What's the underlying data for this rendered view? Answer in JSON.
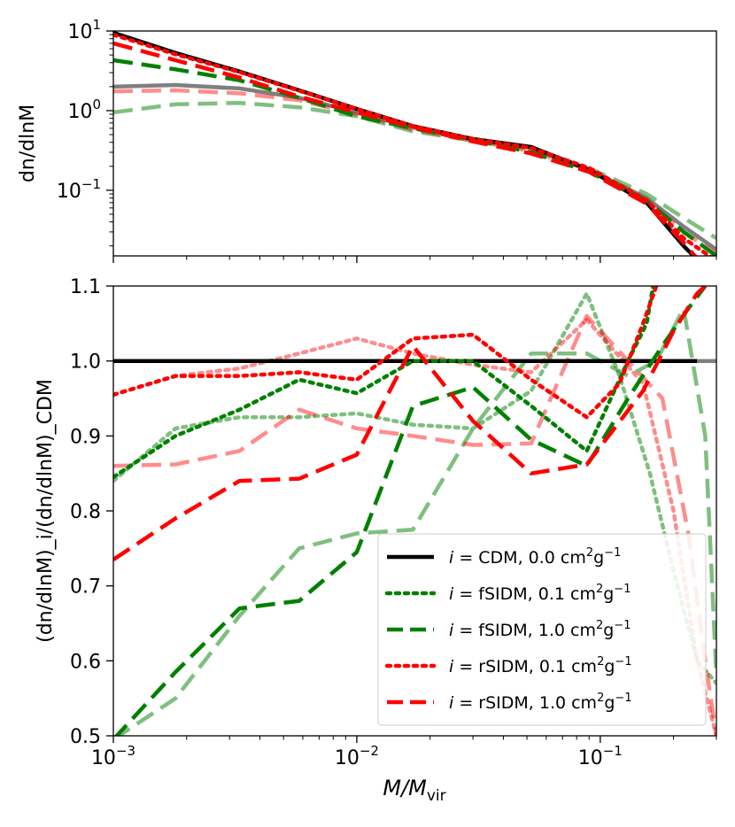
{
  "chart_data": [
    {
      "type": "line",
      "panel": "top",
      "yscale": "log",
      "xscale": "log",
      "xlim": [
        0.001,
        0.3
      ],
      "ylim": [
        0.015,
        10
      ],
      "ylabel": "dn/dlnM",
      "y_ticks": [
        {
          "value": 10,
          "base": "10",
          "exp": "1"
        },
        {
          "value": 1,
          "base": "10",
          "exp": "0"
        },
        {
          "value": 0.1,
          "base": "10",
          "exp": "−1"
        }
      ],
      "series": [
        {
          "name": "CDM light",
          "color": "#7f7f7f",
          "opacity": 1.0,
          "style": "solid",
          "x": [
            0.001,
            0.0018,
            0.0033,
            0.0058,
            0.01,
            0.017,
            0.03,
            0.052,
            0.09,
            0.155,
            0.22,
            0.3
          ],
          "y": [
            2.0,
            2.1,
            1.9,
            1.45,
            0.95,
            0.62,
            0.44,
            0.34,
            0.18,
            0.08,
            0.035,
            0.018
          ]
        },
        {
          "name": "fSIDM 1.0 light",
          "color": "#008000",
          "opacity": 0.5,
          "style": "dashed",
          "x": [
            0.001,
            0.0018,
            0.0033,
            0.0058,
            0.01,
            0.017,
            0.03,
            0.052,
            0.09,
            0.155,
            0.22,
            0.3
          ],
          "y": [
            0.95,
            1.2,
            1.25,
            1.1,
            0.85,
            0.55,
            0.42,
            0.33,
            0.19,
            0.09,
            0.045,
            0.025
          ]
        },
        {
          "name": "rSIDM 1.0 light",
          "color": "#ff0000",
          "opacity": 0.45,
          "style": "dashed",
          "x": [
            0.001,
            0.0018,
            0.0033,
            0.0058,
            0.01,
            0.017,
            0.03,
            0.052,
            0.09,
            0.155,
            0.22,
            0.3
          ],
          "y": [
            1.75,
            1.8,
            1.65,
            1.35,
            0.9,
            0.58,
            0.42,
            0.31,
            0.18,
            0.075,
            0.03,
            0.016
          ]
        },
        {
          "name": "CDM",
          "color": "#000000",
          "opacity": 1.0,
          "style": "solid",
          "x": [
            0.001,
            0.0018,
            0.0033,
            0.0058,
            0.01,
            0.017,
            0.03,
            0.052,
            0.09,
            0.155,
            0.22,
            0.26
          ],
          "y": [
            9.5,
            5.3,
            3.1,
            1.8,
            1.05,
            0.64,
            0.44,
            0.35,
            0.18,
            0.07,
            0.02,
            0.012
          ]
        },
        {
          "name": "fSIDM 1.0",
          "color": "#008000",
          "opacity": 1.0,
          "style": "dashed",
          "x": [
            0.001,
            0.0018,
            0.0033,
            0.0058,
            0.01,
            0.017,
            0.03,
            0.052,
            0.09,
            0.155,
            0.22,
            0.3
          ],
          "y": [
            4.3,
            3.3,
            2.4,
            1.45,
            0.85,
            0.6,
            0.43,
            0.3,
            0.17,
            0.075,
            0.03,
            0.015
          ]
        },
        {
          "name": "rSIDM 0.1",
          "color": "#ff0000",
          "opacity": 1.0,
          "style": "dotted",
          "x": [
            0.001,
            0.0018,
            0.0033,
            0.0058,
            0.01,
            0.017,
            0.03,
            0.052,
            0.09,
            0.155,
            0.22,
            0.3
          ],
          "y": [
            9.0,
            5.1,
            3.05,
            1.78,
            1.05,
            0.64,
            0.44,
            0.34,
            0.19,
            0.075,
            0.025,
            0.013
          ]
        },
        {
          "name": "rSIDM 1.0",
          "color": "#ff0000",
          "opacity": 1.0,
          "style": "dashed",
          "x": [
            0.001,
            0.0018,
            0.0033,
            0.0058,
            0.01,
            0.017,
            0.03,
            0.052,
            0.09,
            0.155,
            0.22,
            0.26
          ],
          "y": [
            7.0,
            4.3,
            2.6,
            1.5,
            0.95,
            0.62,
            0.41,
            0.29,
            0.17,
            0.068,
            0.022,
            0.012
          ]
        }
      ]
    },
    {
      "type": "line",
      "panel": "bottom",
      "xscale": "log",
      "xlim": [
        0.001,
        0.3
      ],
      "ylim": [
        0.5,
        1.1
      ],
      "xlabel_main": "M/M",
      "xlabel_sub": "vir",
      "ylabel": "(dn/dlnM)_i/(dn/dlnM)_CDM",
      "x_ticks": [
        {
          "value": 0.001,
          "base": "10",
          "exp": "−3"
        },
        {
          "value": 0.01,
          "base": "10",
          "exp": "−2"
        },
        {
          "value": 0.1,
          "base": "10",
          "exp": "−1"
        }
      ],
      "y_ticks": [
        "0.5",
        "0.6",
        "0.7",
        "0.8",
        "0.9",
        "1.0",
        "1.1"
      ],
      "series": [
        {
          "name": "CDM light",
          "color": "#7f7f7f",
          "opacity": 1.0,
          "style": "solid",
          "x": [
            0.25,
            0.3
          ],
          "y": [
            1.0,
            1.0
          ]
        },
        {
          "name": "fSIDM 0.1 light",
          "color": "#008000",
          "opacity": 0.5,
          "style": "dotted",
          "x": [
            0.001,
            0.0018,
            0.0033,
            0.0058,
            0.01,
            0.017,
            0.03,
            0.052,
            0.088,
            0.12,
            0.16,
            0.2,
            0.25,
            0.3
          ],
          "y": [
            0.84,
            0.91,
            0.925,
            0.925,
            0.93,
            0.915,
            0.91,
            0.96,
            1.09,
            0.98,
            0.85,
            0.72,
            0.6,
            0.57
          ]
        },
        {
          "name": "fSIDM 1.0 light",
          "color": "#008000",
          "opacity": 0.5,
          "style": "dashed",
          "x": [
            0.001,
            0.0018,
            0.0033,
            0.0058,
            0.01,
            0.017,
            0.03,
            0.052,
            0.088,
            0.13,
            0.17,
            0.22,
            0.27,
            0.3
          ],
          "y": [
            0.495,
            0.55,
            0.66,
            0.75,
            0.77,
            0.775,
            0.91,
            1.01,
            1.01,
            0.98,
            1.0,
            1.07,
            0.9,
            0.58
          ]
        },
        {
          "name": "rSIDM 0.1 light",
          "color": "#ff0000",
          "opacity": 0.45,
          "style": "dotted",
          "x": [
            0.001,
            0.0018,
            0.0033,
            0.0058,
            0.01,
            0.017,
            0.03,
            0.052,
            0.088,
            0.15,
            0.2,
            0.25,
            0.3
          ],
          "y": [
            0.955,
            0.98,
            0.99,
            1.01,
            1.03,
            1.01,
            0.995,
            0.985,
            1.055,
            0.97,
            0.8,
            0.6,
            0.5
          ]
        },
        {
          "name": "rSIDM 1.0 light",
          "color": "#ff0000",
          "opacity": 0.45,
          "style": "dashed",
          "x": [
            0.001,
            0.0018,
            0.0033,
            0.0058,
            0.01,
            0.017,
            0.03,
            0.052,
            0.088,
            0.13,
            0.18,
            0.23,
            0.27,
            0.3
          ],
          "y": [
            0.86,
            0.862,
            0.88,
            0.935,
            0.91,
            0.9,
            0.888,
            0.89,
            1.06,
            1.0,
            0.95,
            0.77,
            0.6,
            0.5
          ]
        },
        {
          "name": "CDM",
          "color": "#000000",
          "opacity": 1.0,
          "style": "solid",
          "x": [
            0.001,
            0.25
          ],
          "y": [
            1.0,
            1.0
          ]
        },
        {
          "name": "fSIDM 0.1",
          "color": "#008000",
          "opacity": 1.0,
          "style": "dotted",
          "x": [
            0.001,
            0.0018,
            0.0033,
            0.0058,
            0.01,
            0.017,
            0.03,
            0.052,
            0.088,
            0.13,
            0.155,
            0.165
          ],
          "y": [
            0.845,
            0.9,
            0.935,
            0.975,
            0.957,
            1.0,
            1.0,
            0.94,
            0.88,
            1.0,
            1.05,
            1.1
          ]
        },
        {
          "name": "fSIDM 1.0",
          "color": "#008000",
          "opacity": 1.0,
          "style": "dashed",
          "x": [
            0.001,
            0.0018,
            0.0033,
            0.0058,
            0.01,
            0.017,
            0.03,
            0.052,
            0.088,
            0.13,
            0.18,
            0.23,
            0.27
          ],
          "y": [
            0.495,
            0.585,
            0.67,
            0.68,
            0.745,
            0.94,
            0.965,
            0.895,
            0.86,
            0.95,
            1.02,
            1.07,
            1.1
          ]
        },
        {
          "name": "rSIDM 0.1",
          "color": "#ff0000",
          "opacity": 1.0,
          "style": "dotted",
          "x": [
            0.001,
            0.0018,
            0.0033,
            0.0058,
            0.01,
            0.017,
            0.03,
            0.052,
            0.088,
            0.12,
            0.15,
            0.17
          ],
          "y": [
            0.955,
            0.98,
            0.98,
            0.985,
            0.975,
            1.03,
            1.035,
            0.975,
            0.925,
            0.97,
            1.05,
            1.1
          ]
        },
        {
          "name": "rSIDM 1.0",
          "color": "#ff0000",
          "opacity": 1.0,
          "style": "dashed",
          "x": [
            0.001,
            0.0018,
            0.0033,
            0.0058,
            0.01,
            0.017,
            0.03,
            0.052,
            0.088,
            0.15,
            0.2,
            0.25,
            0.27
          ],
          "y": [
            0.735,
            0.79,
            0.84,
            0.843,
            0.875,
            1.02,
            0.92,
            0.85,
            0.862,
            0.96,
            1.04,
            1.09,
            1.1
          ]
        }
      ]
    }
  ],
  "legend": {
    "placement": "lower-right",
    "entries": [
      {
        "prefix": "i =",
        "label": "CDM, 0.0 cm",
        "sup1": "2",
        "mid": "g",
        "sup2": "−1",
        "color": "#000000",
        "style": "solid"
      },
      {
        "prefix": "i =",
        "label": "fSIDM, 0.1 cm",
        "sup1": "2",
        "mid": "g",
        "sup2": "−1",
        "color": "#008000",
        "style": "dotted"
      },
      {
        "prefix": "i =",
        "label": "fSIDM, 1.0 cm",
        "sup1": "2",
        "mid": "g",
        "sup2": "−1",
        "color": "#008000",
        "style": "dashed"
      },
      {
        "prefix": "i =",
        "label": "rSIDM, 0.1 cm",
        "sup1": "2",
        "mid": "g",
        "sup2": "−1",
        "color": "#ff0000",
        "style": "dotted"
      },
      {
        "prefix": "i =",
        "label": "rSIDM, 1.0 cm",
        "sup1": "2",
        "mid": "g",
        "sup2": "−1",
        "color": "#ff0000",
        "style": "dashed"
      }
    ]
  }
}
